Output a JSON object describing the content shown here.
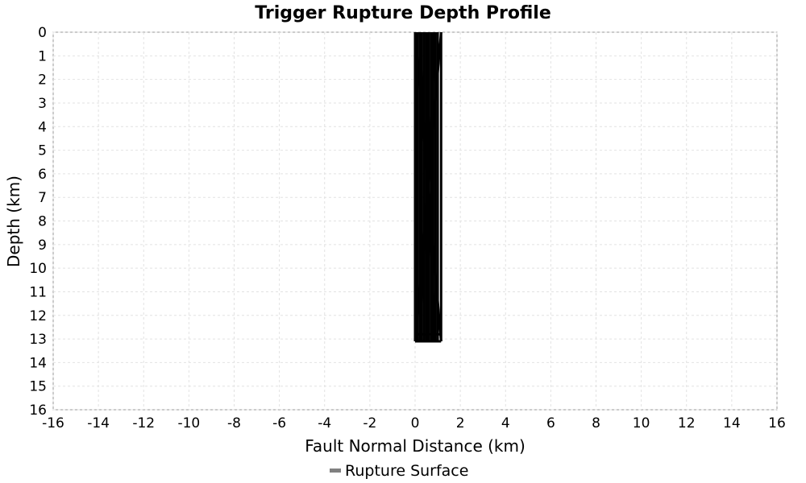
{
  "chart_data": {
    "type": "line",
    "title": "Trigger Rupture Depth Profile",
    "xlabel": "Fault Normal Distance (km)",
    "ylabel": "Depth (km)",
    "xlim": [
      -16,
      16
    ],
    "ylim": [
      0,
      16
    ],
    "y_inverted": true,
    "xticks": [
      -16,
      -14,
      -12,
      -10,
      -8,
      -6,
      -4,
      -2,
      0,
      2,
      4,
      6,
      8,
      10,
      12,
      14,
      16
    ],
    "yticks": [
      0,
      1,
      2,
      3,
      4,
      5,
      6,
      7,
      8,
      9,
      10,
      11,
      12,
      13,
      14,
      15,
      16
    ],
    "grid": true,
    "legend": {
      "position": "bottom-center",
      "entries": [
        {
          "label": "Rupture Surface",
          "color": "#808080"
        }
      ]
    },
    "series_color": "#000000",
    "series": [
      {
        "x": [
          0.0,
          0.0
        ],
        "y": [
          0,
          13.1
        ]
      },
      {
        "x": [
          0.1,
          0.1
        ],
        "y": [
          0,
          13.1
        ]
      },
      {
        "x": [
          0.2,
          0.2
        ],
        "y": [
          0,
          13.1
        ]
      },
      {
        "x": [
          0.3,
          0.3
        ],
        "y": [
          0,
          13.1
        ]
      },
      {
        "x": [
          0.4,
          0.4
        ],
        "y": [
          0,
          13.1
        ]
      },
      {
        "x": [
          0.5,
          0.5
        ],
        "y": [
          0,
          13.1
        ]
      },
      {
        "x": [
          0.6,
          0.6
        ],
        "y": [
          0,
          13.1
        ]
      },
      {
        "x": [
          0.7,
          0.7
        ],
        "y": [
          0,
          13.1
        ]
      },
      {
        "x": [
          0.8,
          0.8
        ],
        "y": [
          0,
          13.1
        ]
      },
      {
        "x": [
          0.9,
          0.9
        ],
        "y": [
          0,
          13.1
        ]
      },
      {
        "x": [
          1.0,
          1.0
        ],
        "y": [
          0,
          13.1
        ]
      },
      {
        "x": [
          1.15,
          1.15
        ],
        "y": [
          0,
          13.1
        ]
      },
      {
        "x": [
          0.0,
          1.15
        ],
        "y": [
          0,
          13.1
        ]
      },
      {
        "x": [
          1.15,
          0.0
        ],
        "y": [
          0,
          13.1
        ]
      },
      {
        "x": [
          0.2,
          0.9
        ],
        "y": [
          0,
          13.1
        ]
      },
      {
        "x": [
          0.9,
          0.2
        ],
        "y": [
          0,
          13.1
        ]
      },
      {
        "x": [
          0.0,
          1.15
        ],
        "y": [
          12.8,
          12.8
        ]
      },
      {
        "x": [
          0.0,
          1.15
        ],
        "y": [
          13.1,
          13.1
        ]
      }
    ]
  }
}
